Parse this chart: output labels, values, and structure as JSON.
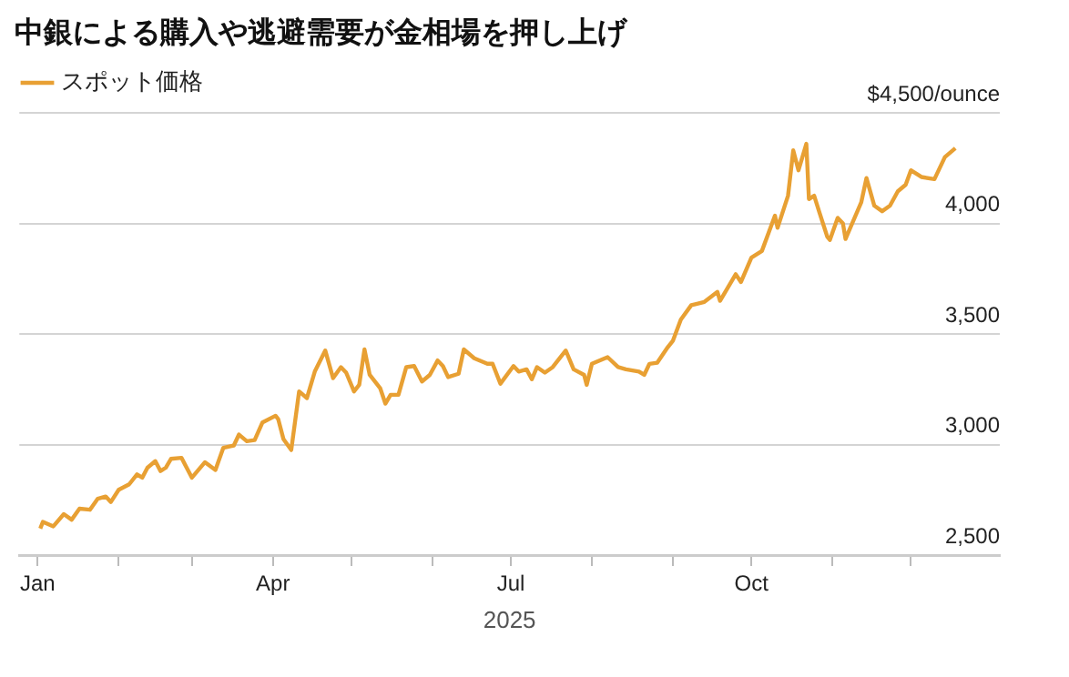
{
  "chart_data": {
    "type": "line",
    "title": "中銀による購入や逃避需要が金相場を押し上げ",
    "xlabel": "2025",
    "x": [
      "2025-01-02",
      "2025-01-03",
      "2025-01-07",
      "2025-01-11",
      "2025-01-14",
      "2025-01-17",
      "2025-01-21",
      "2025-01-24",
      "2025-01-27",
      "2025-01-29",
      "2025-02-01",
      "2025-02-05",
      "2025-02-08",
      "2025-02-10",
      "2025-02-12",
      "2025-02-15",
      "2025-02-17",
      "2025-02-19",
      "2025-02-21",
      "2025-02-25",
      "2025-03-01",
      "2025-03-06",
      "2025-03-10",
      "2025-03-13",
      "2025-03-17",
      "2025-03-19",
      "2025-03-22",
      "2025-03-25",
      "2025-03-28",
      "2025-04-02",
      "2025-04-03",
      "2025-04-05",
      "2025-04-08",
      "2025-04-11",
      "2025-04-14",
      "2025-04-17",
      "2025-04-21",
      "2025-04-24",
      "2025-04-27",
      "2025-04-29",
      "2025-05-02",
      "2025-05-04",
      "2025-05-06",
      "2025-05-08",
      "2025-05-12",
      "2025-05-14",
      "2025-05-16",
      "2025-05-19",
      "2025-05-22",
      "2025-05-25",
      "2025-05-28",
      "2025-05-31",
      "2025-06-03",
      "2025-06-05",
      "2025-06-07",
      "2025-06-11",
      "2025-06-13",
      "2025-06-17",
      "2025-06-22",
      "2025-06-24",
      "2025-06-27",
      "2025-07-02",
      "2025-07-04",
      "2025-07-07",
      "2025-07-09",
      "2025-07-11",
      "2025-07-14",
      "2025-07-17",
      "2025-07-22",
      "2025-07-25",
      "2025-07-29",
      "2025-07-30",
      "2025-08-01",
      "2025-08-07",
      "2025-08-11",
      "2025-08-14",
      "2025-08-19",
      "2025-08-21",
      "2025-08-23",
      "2025-08-26",
      "2025-08-30",
      "2025-09-01",
      "2025-09-04",
      "2025-09-08",
      "2025-09-13",
      "2025-09-18",
      "2025-09-19",
      "2025-09-25",
      "2025-09-27",
      "2025-10-01",
      "2025-10-05",
      "2025-10-10",
      "2025-10-11",
      "2025-10-15",
      "2025-10-17",
      "2025-10-19",
      "2025-10-22",
      "2025-10-23",
      "2025-10-25",
      "2025-10-27",
      "2025-10-30",
      "2025-10-31",
      "2025-11-03",
      "2025-11-05",
      "2025-11-06",
      "2025-11-08",
      "2025-11-12",
      "2025-11-14",
      "2025-11-17",
      "2025-11-20",
      "2025-11-23",
      "2025-11-26",
      "2025-11-29",
      "2025-12-01",
      "2025-12-05",
      "2025-12-10",
      "2025-12-14",
      "2025-12-18"
    ],
    "series": [
      {
        "name": "スポット価格",
        "color": "#e8a033",
        "values": [
          2620,
          2650,
          2630,
          2685,
          2660,
          2710,
          2705,
          2755,
          2765,
          2740,
          2795,
          2820,
          2865,
          2850,
          2895,
          2925,
          2880,
          2895,
          2935,
          2940,
          2850,
          2920,
          2885,
          2985,
          2995,
          3045,
          3015,
          3020,
          3100,
          3130,
          3115,
          3025,
          2975,
          3240,
          3210,
          3330,
          3425,
          3300,
          3350,
          3325,
          3240,
          3270,
          3430,
          3315,
          3255,
          3185,
          3225,
          3225,
          3350,
          3355,
          3285,
          3315,
          3380,
          3355,
          3305,
          3320,
          3430,
          3390,
          3365,
          3365,
          3275,
          3355,
          3330,
          3340,
          3295,
          3350,
          3325,
          3350,
          3425,
          3340,
          3315,
          3270,
          3365,
          3395,
          3350,
          3340,
          3330,
          3315,
          3365,
          3370,
          3440,
          3470,
          3565,
          3630,
          3645,
          3690,
          3650,
          3770,
          3735,
          3845,
          3875,
          4035,
          3980,
          4125,
          4330,
          4240,
          4360,
          4110,
          4125,
          4050,
          3940,
          3925,
          4025,
          4000,
          3930,
          3985,
          4095,
          4205,
          4080,
          4055,
          4080,
          4145,
          4175,
          4240,
          4210,
          4200,
          4300,
          4340
        ]
      }
    ],
    "xlim": [
      "2024-12-25",
      "2026-01-04"
    ],
    "xticks": [
      {
        "value": "2025-01-01",
        "label": "Jan"
      },
      {
        "value": "2025-02-01",
        "label": null
      },
      {
        "value": "2025-03-01",
        "label": null
      },
      {
        "value": "2025-04-01",
        "label": "Apr"
      },
      {
        "value": "2025-05-01",
        "label": null
      },
      {
        "value": "2025-06-01",
        "label": null
      },
      {
        "value": "2025-07-01",
        "label": "Jul"
      },
      {
        "value": "2025-08-01",
        "label": null
      },
      {
        "value": "2025-09-01",
        "label": null
      },
      {
        "value": "2025-10-01",
        "label": "Oct"
      },
      {
        "value": "2025-11-01",
        "label": null
      },
      {
        "value": "2025-12-01",
        "label": null
      }
    ],
    "ylim": [
      2500,
      4500
    ],
    "yticks": [
      {
        "value": 2500,
        "label": "2,500"
      },
      {
        "value": 3000,
        "label": "3,000"
      },
      {
        "value": 3500,
        "label": "3,500"
      },
      {
        "value": 4000,
        "label": "4,000"
      },
      {
        "value": 4500,
        "label": "$4,500/ounce"
      }
    ],
    "grid": "y",
    "legend": "top left",
    "marker": "none",
    "line_style": "solid"
  }
}
